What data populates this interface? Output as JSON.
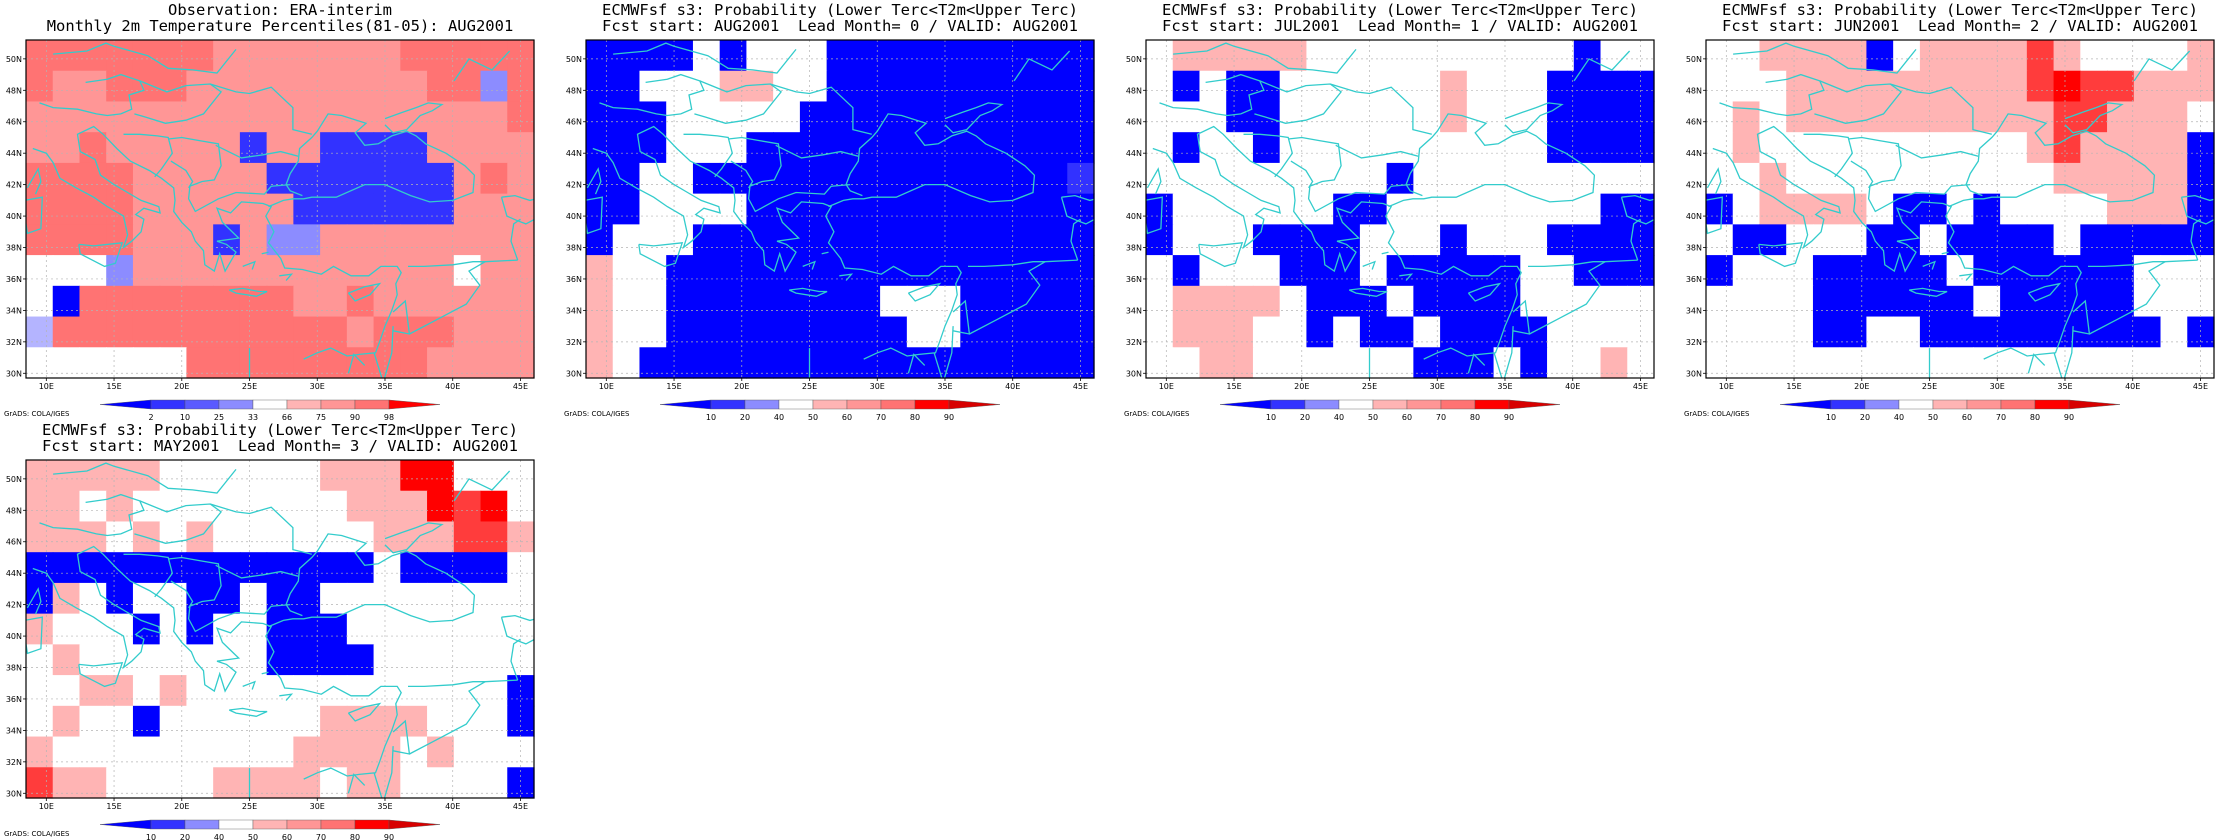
{
  "colors": {
    "grid": "#b4b4b4",
    "coast": "#33cccc",
    "frame": "#000000",
    "blues": [
      "#0000ff",
      "#3232ff",
      "#5a5aff",
      "#8c8cff",
      "#b4b4ff"
    ],
    "reds": [
      "#ffb4b4",
      "#ff9696",
      "#ff7373",
      "#ff3c3c",
      "#ff0000",
      "#d70000",
      "#b40000"
    ]
  },
  "map_axes": {
    "lon_labels": [
      "10E",
      "15E",
      "20E",
      "25E",
      "30E",
      "35E",
      "40E",
      "45E"
    ],
    "lat_labels": [
      "30N",
      "32N",
      "34N",
      "36N",
      "38N",
      "40N",
      "42N",
      "44N",
      "46N",
      "48N",
      "50N"
    ]
  },
  "credit": "GrADS: COLA/IGES",
  "legend_obs": [
    "2",
    "10",
    "25",
    "33",
    "66",
    "75",
    "90",
    "98"
  ],
  "legend_prob": [
    "10",
    "20",
    "40",
    "50",
    "60",
    "70",
    "80",
    "90"
  ],
  "panels": [
    {
      "title1": "Observation: ERA-interim",
      "title2": "Monthly 2m Temperature Percentiles(81-05): AUG2001",
      "legend": "obs",
      "grid": [
        "MMMMMMMSSSSSSSMMMMM",
        "MSSMMMSSSSSSSSSMMLM",
        "SSSSSSSSSSSSSSSSSSM",
        "SSMSSSSSTSSTTTTSSSS",
        "MMMMSSSSSTTTTTTTSMS",
        "MMMMSSSSSSTTTTTTSSS",
        "MMMMSSSTSLLSSSSSSSS",
        "WWWLSSSSSSSSSSSSWSS",
        "WBMMMMMMMMSSMSSSSSS",
        "HMMMMMMMMMMMSMMMSSS",
        "WWWWWWMMMMMMMMMSSSS"
      ]
    },
    {
      "title1": "ECMWFsf s3: Probability (Lower Terc<T2m<Upper Terc)",
      "title2": "Fcst start: AUG2001  Lead Month= 0 / VALID: AUG2001",
      "legend": "prob",
      "grid": [
        "BBBBWBWWWBBBBBBBBBB",
        "BBWWWPPWWBBBBBBBBBB",
        "BBBWWWWWBBBBBBBBBBB",
        "BBBWWWBBBBBBBBBBBBB",
        "BBWWBBBBBBBBBBBBBBT",
        "BBWWWWBBBBBBBBBBBBB",
        "BWWWBBBBBBBBBBBBBBB",
        "PWWBBBBBBBBBBBBBBBB",
        "PWWBBBBBBBBWWWBBBBB",
        "PWWBBBBBBBBBWWBBBBB",
        "PWBBBBBBBBBBBBBBBBB"
      ]
    },
    {
      "title1": "ECMWFsf s3: Probability (Lower Terc<T2m<Upper Terc)",
      "title2": "Fcst start: JUL2001  Lead Month= 1 / VALID: AUG2001",
      "legend": "prob",
      "grid": [
        "WPPPPPWWWWWWWWWWBWW",
        "WBWBBWWWWWWPWWWBBBB",
        "WWWBBWWWWWWPWWWBBBB",
        "WBWWBWWWWWWWWWWBBBB",
        "WWWWWWWWWBWWWWWWWWW",
        "BWWWWWWBBWWWWWWWWBB",
        "BWWWBBBBWWWBWWWBBBB",
        "WBWWWBBBWBBBBBWWBBB",
        "WPPPPWBBBWBBBBWWWWW",
        "WPPPWWBWBBWBBBBWWWW",
        "WWPPWWWWWWBBBWBWWPW"
      ]
    },
    {
      "title1": "ECMWFsf s3: Probability (Lower Terc<T2m<Upper Terc)",
      "title2": "Fcst start: JUN2001  Lead Month= 2 / VALID: AUG2001",
      "legend": "prob",
      "grid": [
        "WWPPPPBWPPPPRPWWWWP",
        "WWWPPPPPPPPPRQRRPPP",
        "WPWPPPPPPPPPPRRPPPW",
        "WPWWWWWWWWWWPRPPPPB",
        "WWPWWWWWWWWWWPPPPPB",
        "BWPPPPWBBWBWWWWPPPB",
        "WBBWWWBBWBBBBWBBBBB",
        "BWWWBBBBBWBBBBBBWWW",
        "WWWWBBBBBBWBBBBBWWW",
        "WWWWBBWWBBBBBBBBBWB",
        "WWWWWWWWWWWWWWWWWWW"
      ]
    },
    {
      "title1": "ECMWFsf s3: Probability (Lower Terc<T2m<Upper Terc)",
      "title2": "Fcst start: MAY2001  Lead Month= 3 / VALID: AUG2001",
      "legend": "prob",
      "grid": [
        "PPPPPWWWWWWPPPQQWWW",
        "PPWPWWWWWWWWPPPQRQW",
        "PPPWPWPWWWWWWPPPRRP",
        "BBBBBBBBBBBBBWBBBBW",
        "BPWBWWBBWBBWWWWWWWW",
        "PWWWBWBWWBBBWWWWWWW",
        "WPWWWWWWWBBBBWWWWWW",
        "WWPPWPWWWWWWWWWWWWB",
        "WPWWBWWWWWWPPPPWWWB",
        "PWWWWWWWWWPPPPWPWWW",
        "RPPWWWWPPPPWPPWWWWB"
      ]
    }
  ]
}
